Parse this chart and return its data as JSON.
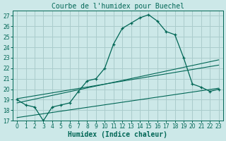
{
  "title": "Courbe de l'humidex pour Buechel",
  "xlabel": "Humidex (Indice chaleur)",
  "bg_color": "#cce8e8",
  "grid_color": "#aacccc",
  "line_color": "#006655",
  "xlim": [
    -0.5,
    23.5
  ],
  "ylim": [
    17,
    27.5
  ],
  "yticks": [
    17,
    18,
    19,
    20,
    21,
    22,
    23,
    24,
    25,
    26,
    27
  ],
  "xticks": [
    0,
    1,
    2,
    3,
    4,
    5,
    6,
    7,
    8,
    9,
    10,
    11,
    12,
    13,
    14,
    15,
    16,
    17,
    18,
    19,
    20,
    21,
    22,
    23
  ],
  "main_x": [
    0,
    1,
    2,
    3,
    4,
    5,
    6,
    7,
    8,
    9,
    10,
    11,
    12,
    13,
    14,
    15,
    16,
    17,
    18,
    19,
    20,
    21,
    22,
    23
  ],
  "main_y": [
    19.0,
    18.5,
    18.3,
    17.0,
    18.3,
    18.5,
    18.7,
    19.8,
    20.8,
    21.0,
    22.0,
    24.3,
    25.8,
    26.3,
    26.8,
    27.1,
    26.5,
    25.5,
    25.2,
    23.0,
    20.5,
    20.2,
    19.8,
    20.0
  ],
  "line1_x": [
    0,
    23
  ],
  "line1_y": [
    18.7,
    22.8
  ],
  "line2_x": [
    0,
    23
  ],
  "line2_y": [
    19.1,
    22.3
  ],
  "line3_x": [
    0,
    23
  ],
  "line3_y": [
    17.3,
    20.1
  ],
  "title_fontsize": 7,
  "xlabel_fontsize": 7,
  "tick_fontsize": 5.5
}
